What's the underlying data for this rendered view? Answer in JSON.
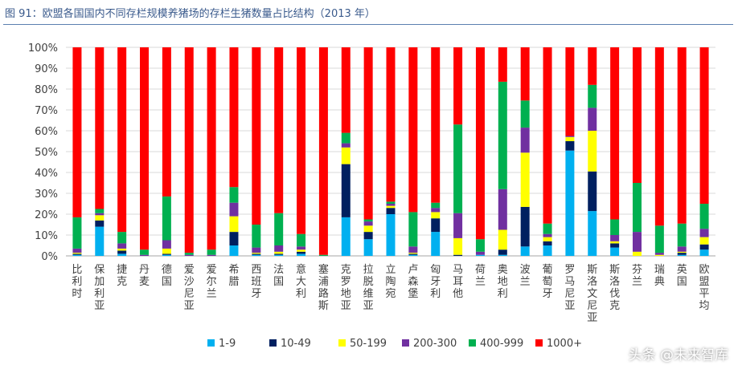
{
  "title": "图 91：欧盟各国国内不同存栏规模养猪场的存栏生猪数量占比结构（2013 年）",
  "watermark": "头条 @未来智库",
  "colors": {
    "1-9": "#00b0f0",
    "10-49": "#002060",
    "50-199": "#ffff00",
    "200-300": "#7030a0",
    "400-999": "#00b050",
    "1000+": "#ff0000"
  },
  "chart_data": {
    "type": "bar",
    "stacked": true,
    "ylim": [
      0,
      100
    ],
    "yticks": [
      "0%",
      "10%",
      "20%",
      "30%",
      "40%",
      "50%",
      "60%",
      "70%",
      "80%",
      "90%",
      "100%"
    ],
    "categories": [
      "比利时",
      "保加利亚",
      "捷克",
      "丹麦",
      "德国",
      "爱沙尼亚",
      "爱尔兰",
      "希腊",
      "西班牙",
      "法国",
      "意大利",
      "塞浦路斯",
      "克罗地亚",
      "拉脱维亚",
      "立陶宛",
      "卢森堡",
      "匈牙利",
      "马耳他",
      "荷兰",
      "奥地利",
      "波兰",
      "葡萄牙",
      "罗马尼亚",
      "斯洛文尼亚",
      "斯洛伐克",
      "芬兰",
      "瑞典",
      "英国",
      "欧盟平均"
    ],
    "series": [
      {
        "name": "1-9",
        "values": [
          0.5,
          14,
          1,
          0,
          0.5,
          0,
          0,
          5,
          0.5,
          0.5,
          1,
          0,
          18.5,
          8,
          20,
          0.5,
          11.5,
          0,
          0.5,
          0.5,
          4.5,
          5,
          50.5,
          21.5,
          4,
          0,
          0,
          0.5,
          3
        ]
      },
      {
        "name": "10-49",
        "values": [
          0.5,
          3,
          1.5,
          0,
          0.5,
          0,
          0,
          6.5,
          0.5,
          0.5,
          1,
          0,
          25.5,
          3.5,
          3,
          0.5,
          6.5,
          0.5,
          0,
          2.5,
          19,
          2,
          4.5,
          19,
          2,
          0,
          0,
          1,
          2.5
        ]
      },
      {
        "name": "50-199",
        "values": [
          0.5,
          2.5,
          1,
          0,
          2.5,
          0,
          0,
          7.5,
          0.5,
          1,
          1,
          0,
          8,
          3,
          1,
          0.5,
          3,
          8,
          0,
          9.5,
          26,
          2,
          2,
          19.5,
          1,
          2,
          0.5,
          0.5,
          3.5
        ]
      },
      {
        "name": "200-300",
        "values": [
          2,
          1,
          2.5,
          0.5,
          4,
          0.5,
          0.5,
          6.5,
          2.5,
          3,
          1.5,
          0,
          2,
          2,
          1,
          3,
          2,
          12,
          1.5,
          19.5,
          12,
          1.5,
          0.5,
          11,
          3,
          9.5,
          1,
          2.5,
          4
        ]
      },
      {
        "name": "400-999",
        "values": [
          15,
          2,
          5.5,
          2.5,
          21,
          1,
          2.5,
          7.5,
          11,
          15.5,
          6,
          0.5,
          5,
          1,
          1,
          16.5,
          2.5,
          42.5,
          6,
          51.5,
          13,
          5,
          0,
          11,
          7.5,
          23.5,
          13,
          11,
          12
        ]
      },
      {
        "name": "1000+",
        "values": [
          81.5,
          77.5,
          88.5,
          97,
          71.5,
          98.5,
          97,
          67,
          85,
          79.5,
          89.5,
          99.5,
          41,
          82.5,
          74,
          79,
          74.5,
          37,
          92,
          16.5,
          25.5,
          84.5,
          42.5,
          18,
          82.5,
          65,
          85.5,
          84.5,
          75
        ]
      }
    ]
  }
}
